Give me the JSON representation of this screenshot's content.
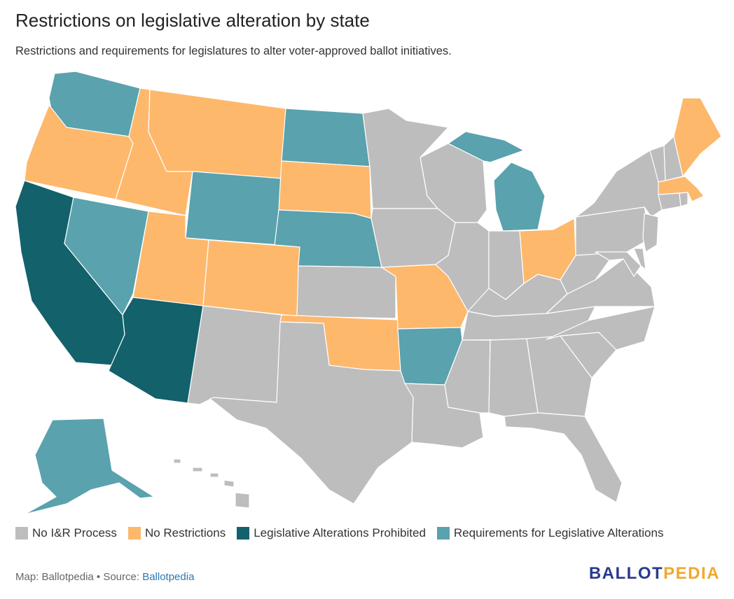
{
  "title": "Restrictions on legislative alteration by state",
  "subtitle": "Restrictions and requirements for legislatures to alter voter-approved ballot initiatives.",
  "colors": {
    "none": "#bdbdbd",
    "no_restrictions": "#fdb86c",
    "prohibited": "#12616b",
    "requirements": "#5aa2ad"
  },
  "legend": [
    {
      "key": "none",
      "label": "No I&R Process"
    },
    {
      "key": "no_restrictions",
      "label": "No Restrictions"
    },
    {
      "key": "prohibited",
      "label": "Legislative Alterations Prohibited"
    },
    {
      "key": "requirements",
      "label": "Requirements for Legislative Alterations"
    }
  ],
  "states": {
    "WA": "requirements",
    "OR": "no_restrictions",
    "CA": "prohibited",
    "ID": "no_restrictions",
    "NV": "requirements",
    "AZ": "prohibited",
    "UT": "no_restrictions",
    "MT": "no_restrictions",
    "WY": "requirements",
    "CO": "no_restrictions",
    "NM": "none",
    "ND": "requirements",
    "SD": "no_restrictions",
    "NE": "requirements",
    "KS": "none",
    "OK": "no_restrictions",
    "TX": "none",
    "MN": "none",
    "IA": "none",
    "MO": "no_restrictions",
    "AR": "requirements",
    "LA": "none",
    "WI": "none",
    "MI": "requirements",
    "IL": "none",
    "IN": "none",
    "KY": "none",
    "TN": "none",
    "MS": "none",
    "AL": "none",
    "OH": "no_restrictions",
    "WV": "none",
    "VA": "none",
    "NC": "none",
    "SC": "none",
    "GA": "none",
    "FL": "none",
    "PA": "none",
    "NY": "none",
    "VT": "none",
    "NH": "none",
    "ME": "no_restrictions",
    "MA": "no_restrictions",
    "CT": "none",
    "RI": "none",
    "NJ": "none",
    "DE": "none",
    "MD": "none",
    "AK": "requirements",
    "HI": "none"
  },
  "footer": {
    "prefix": "Map: Ballotpedia • Source: ",
    "link": "Ballotpedia"
  },
  "brand": {
    "part1": "BALLOT",
    "part2": "PEDIA",
    "color1": "#2b3a8c",
    "color2": "#f0a830"
  }
}
